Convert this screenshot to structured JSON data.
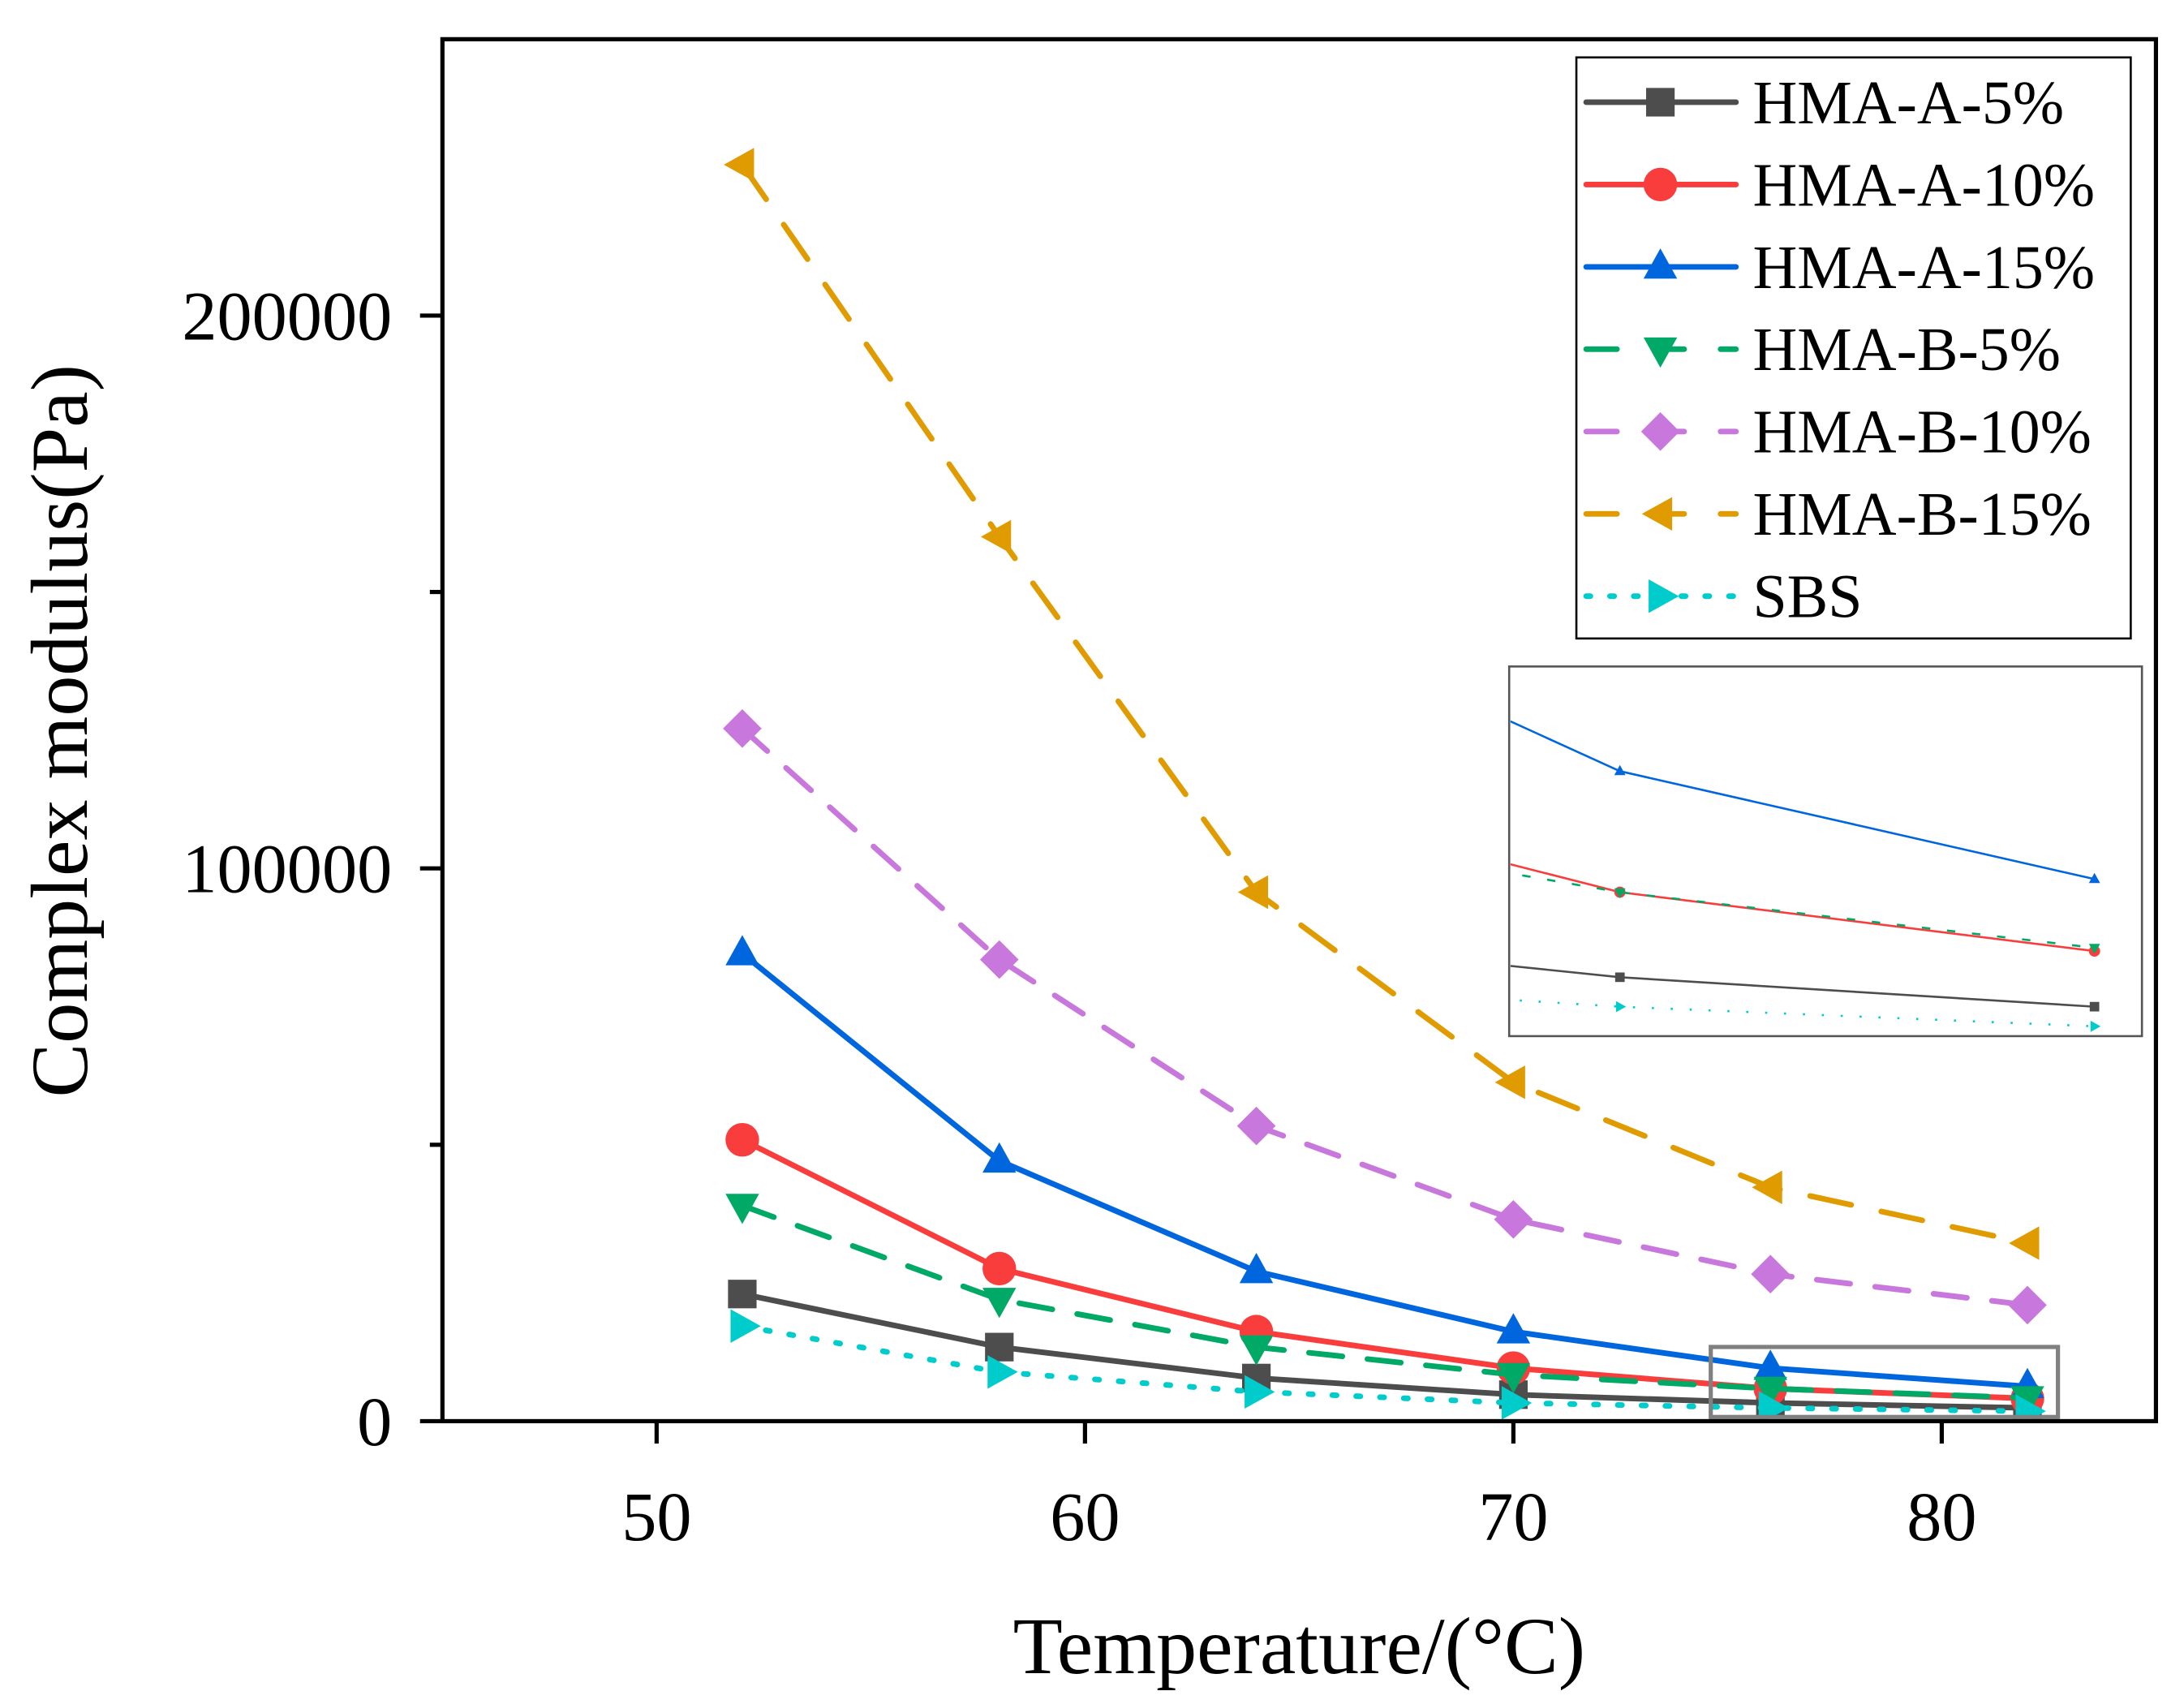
{
  "chart_data": {
    "type": "line",
    "title": "",
    "xlabel": "Temperature/(°C)",
    "ylabel": "Complex modulus(Pa)",
    "xlim": [
      45,
      85
    ],
    "ylim": [
      0,
      250000
    ],
    "xticks": [
      50,
      60,
      70,
      80
    ],
    "yticks": [
      0,
      100000,
      200000
    ],
    "xtick_labels": [
      "50",
      "60",
      "70",
      "80"
    ],
    "ytick_labels": [
      "0",
      "100000",
      "200000"
    ],
    "grid": false,
    "legend_position": "top-right",
    "x": [
      52,
      58,
      64,
      70,
      76,
      82
    ],
    "series": [
      {
        "name": "HMA-A-5%",
        "color": "#4d4d4d",
        "marker": "square",
        "line": "solid",
        "values": [
          23000,
          13400,
          7800,
          4800,
          3300,
          2400
        ]
      },
      {
        "name": "HMA-A-10%",
        "color": "#f93c3c",
        "marker": "circle",
        "line": "solid",
        "values": [
          50900,
          27600,
          16200,
          9600,
          5900,
          4100
        ]
      },
      {
        "name": "HMA-A-15%",
        "color": "#0066dd",
        "marker": "triangle-up",
        "line": "solid",
        "values": [
          84600,
          47100,
          27100,
          16200,
          9600,
          6300
        ]
      },
      {
        "name": "HMA-B-5%",
        "color": "#00aa66",
        "marker": "triangle-down",
        "line": "dash",
        "values": [
          39000,
          22000,
          13400,
          8400,
          5900,
          4200
        ]
      },
      {
        "name": "HMA-B-10%",
        "color": "#c878dc",
        "marker": "diamond",
        "line": "dash",
        "values": [
          125300,
          83500,
          53400,
          36500,
          26600,
          21000
        ]
      },
      {
        "name": "HMA-B-15%",
        "color": "#e09b00",
        "marker": "triangle-left",
        "line": "longdash",
        "values": [
          227300,
          160000,
          95700,
          61300,
          42300,
          32200
        ]
      },
      {
        "name": "SBS",
        "color": "#00cccc",
        "marker": "triangle-right",
        "line": "dot",
        "values": [
          17200,
          8900,
          5300,
          3300,
          2400,
          1800
        ]
      }
    ],
    "inset": {
      "description_of_region": "zoom",
      "xlim": [
        74.6,
        82.6
      ],
      "ylim": [
        1500,
        12800
      ]
    }
  }
}
